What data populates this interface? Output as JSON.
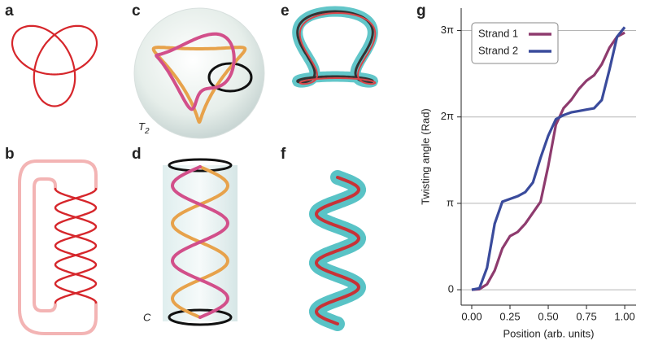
{
  "panels": {
    "labels": [
      "a",
      "b",
      "c",
      "d",
      "e",
      "f",
      "g"
    ],
    "torus_label": {
      "symbol": "T",
      "subscript": "2"
    },
    "cylinder_label": "C"
  },
  "chart_data": {
    "type": "line",
    "x": [
      0,
      0.05,
      0.1,
      0.15,
      0.2,
      0.25,
      0.3,
      0.35,
      0.4,
      0.45,
      0.5,
      0.55,
      0.6,
      0.65,
      0.7,
      0.75,
      0.8,
      0.85,
      0.9,
      0.95,
      1.0
    ],
    "series": [
      {
        "name": "Strand 1",
        "color": "#8e3b6e",
        "values": [
          0,
          0.02,
          0.2,
          0.7,
          1.5,
          1.95,
          2.1,
          2.4,
          2.8,
          3.2,
          4.5,
          6.0,
          6.6,
          6.9,
          7.3,
          7.6,
          7.8,
          8.2,
          8.8,
          9.2,
          9.35
        ]
      },
      {
        "name": "Strand 2",
        "color": "#3a4b9c",
        "values": [
          0,
          0.05,
          0.8,
          2.4,
          3.2,
          3.3,
          3.4,
          3.55,
          3.9,
          4.8,
          5.6,
          6.2,
          6.35,
          6.45,
          6.5,
          6.55,
          6.6,
          6.9,
          8.0,
          9.2,
          9.55
        ]
      }
    ],
    "x_label": "Position (arb. units)",
    "y_label": "Twisting angle (Rad)",
    "xlim": [
      -0.069,
      1.074
    ],
    "ylim": [
      -0.56,
      10.24
    ],
    "xticks": [
      {
        "value": 0,
        "label": "0.00"
      },
      {
        "value": 0.25,
        "label": "0.25"
      },
      {
        "value": 0.5,
        "label": "0.50"
      },
      {
        "value": 0.75,
        "label": "0.75"
      },
      {
        "value": 1.0,
        "label": "1.00"
      }
    ],
    "yticks": [
      0,
      {
        "value": 3.14159,
        "label": "π"
      },
      {
        "value": 6.28319,
        "label": "2π"
      },
      {
        "value": 9.42478,
        "label": "3π"
      }
    ],
    "grid": true,
    "legend": "upper left"
  }
}
